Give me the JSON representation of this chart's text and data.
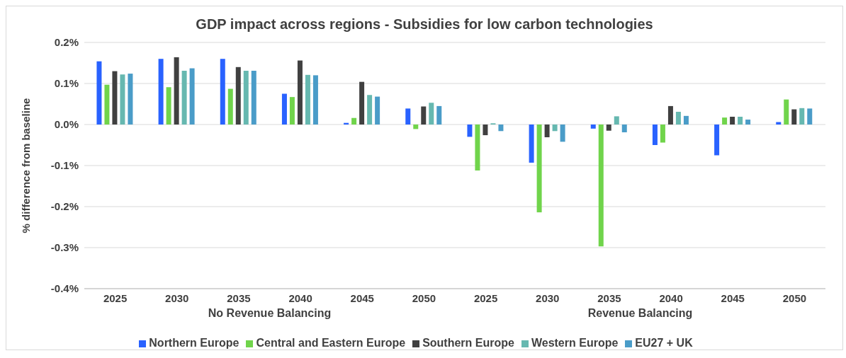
{
  "chart_data": {
    "type": "bar",
    "title": "GDP impact across regions - Subsidies for low carbon technologies",
    "ylabel": "% difference from baseline",
    "categories": [
      "2025",
      "2030",
      "2035",
      "2040",
      "2045",
      "2050",
      "2025",
      "2030",
      "2035",
      "2040",
      "2045",
      "2050"
    ],
    "annotations": [
      "No Revenue Balancing",
      "Revenue Balancing"
    ],
    "series": [
      {
        "name": "Northern Europe",
        "color": "#2962ff",
        "values": [
          0.154,
          0.16,
          0.16,
          0.075,
          0.004,
          0.039,
          -0.03,
          -0.093,
          -0.01,
          -0.05,
          -0.075,
          0.006
        ]
      },
      {
        "name": "Central and Eastern Europe",
        "color": "#70d44b",
        "values": [
          0.097,
          0.091,
          0.087,
          0.067,
          0.016,
          -0.011,
          -0.112,
          -0.214,
          -0.297,
          -0.044,
          0.017,
          0.061
        ]
      },
      {
        "name": "Southern Europe",
        "color": "#404040",
        "values": [
          0.13,
          0.164,
          0.14,
          0.156,
          0.104,
          0.044,
          -0.026,
          -0.031,
          -0.015,
          0.045,
          0.019,
          0.037
        ]
      },
      {
        "name": "Western Europe",
        "color": "#66b8b0",
        "values": [
          0.122,
          0.131,
          0.131,
          0.121,
          0.072,
          0.053,
          0.003,
          -0.016,
          0.02,
          0.031,
          0.019,
          0.04
        ]
      },
      {
        "name": "EU27 + UK",
        "color": "#4a9cc8",
        "values": [
          0.124,
          0.137,
          0.131,
          0.12,
          0.068,
          0.045,
          -0.016,
          -0.042,
          -0.019,
          0.021,
          0.012,
          0.039
        ]
      }
    ],
    "ylim": [
      -0.4,
      0.2
    ],
    "yticks": [
      {
        "value": -0.4,
        "label": "-0.4%"
      },
      {
        "value": -0.3,
        "label": "-0.3%"
      },
      {
        "value": -0.2,
        "label": "-0.2%"
      },
      {
        "value": -0.1,
        "label": "-0.1%"
      },
      {
        "value": 0,
        "label": "0.0%"
      },
      {
        "value": 0.1,
        "label": "0.1%"
      },
      {
        "value": 0.2,
        "label": "0.2%"
      }
    ],
    "grid": "y",
    "legend": "bottom"
  }
}
